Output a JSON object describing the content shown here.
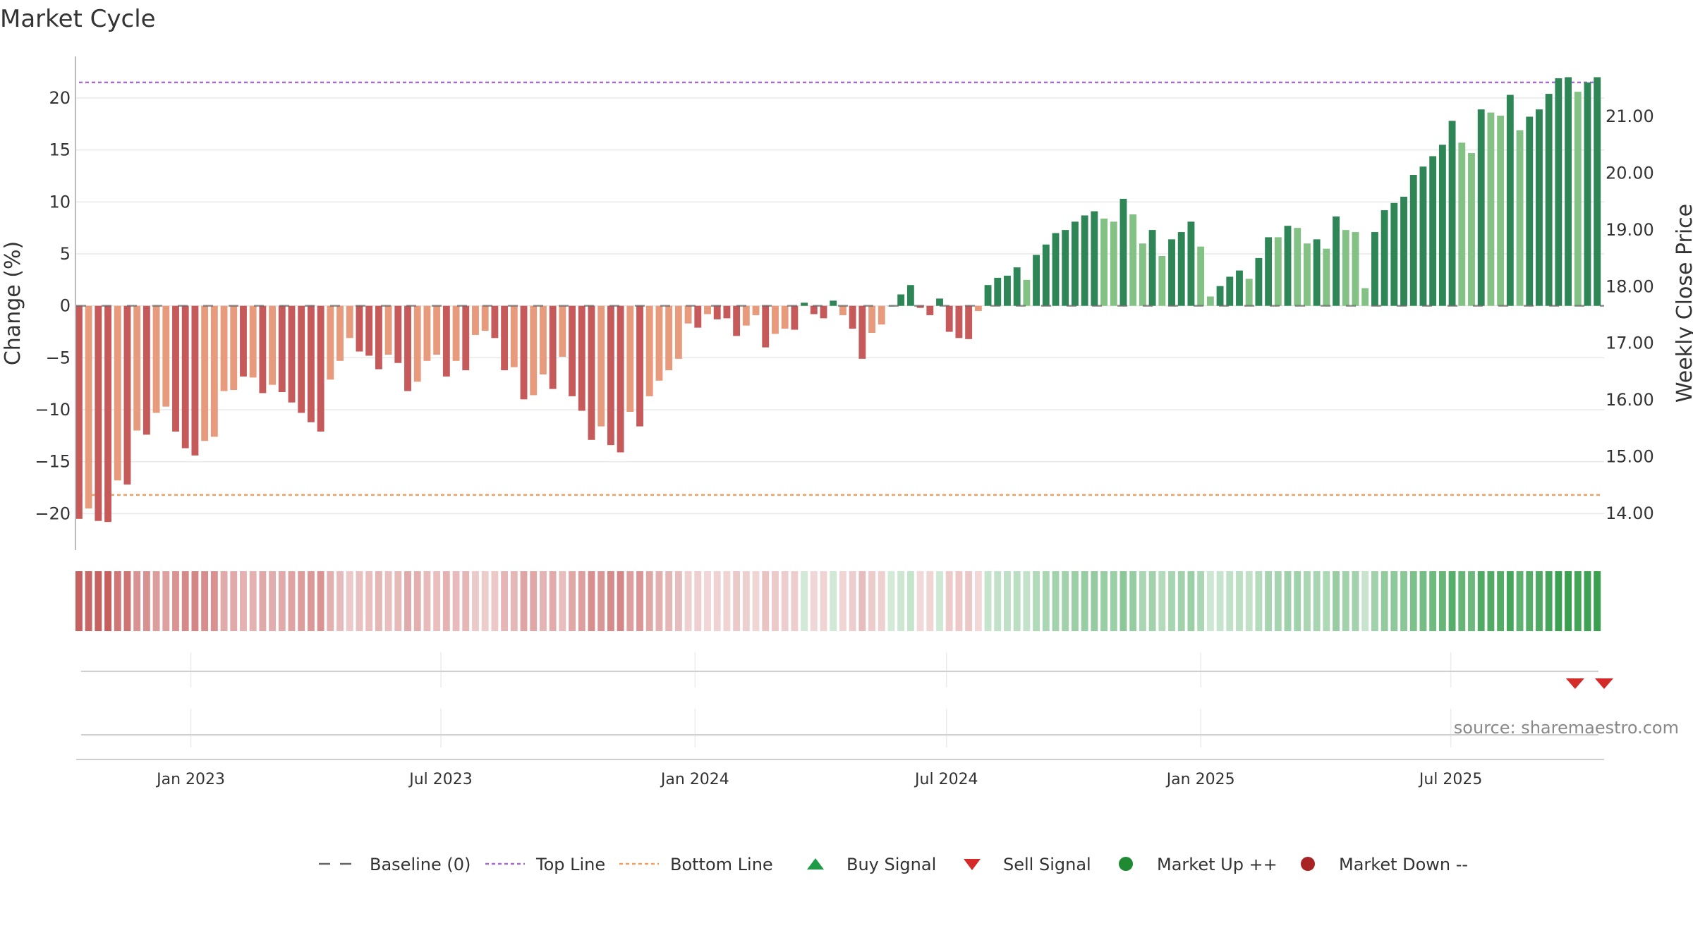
{
  "chart_data": {
    "type": "bar",
    "title": "Market Cycle",
    "ylabel": "Change (%)",
    "ylabel_right": "Weekly Close Price",
    "ylim": [
      -23.5,
      24
    ],
    "yticks": [
      20,
      15,
      10,
      5,
      0,
      -5,
      -10,
      -15,
      -20
    ],
    "ytick_labels": [
      "20",
      "15",
      "10",
      "5",
      "0",
      "−5",
      "−10",
      "−15",
      "−20"
    ],
    "ylim_right": [
      13.35,
      22.06
    ],
    "yticks_right": [
      21,
      20,
      19,
      18,
      17,
      16,
      15,
      14
    ],
    "ytick_labels_right": [
      "21.00",
      "20.00",
      "19.00",
      "18.00",
      "17.00",
      "16.00",
      "15.00",
      "14.00"
    ],
    "x_start": "2022-10-10",
    "x_end": "2025-10-20",
    "xticks": [
      "2023-01-01",
      "2023-07-01",
      "2024-01-01",
      "2024-07-01",
      "2025-01-01",
      "2025-07-01"
    ],
    "xtick_labels": [
      "Jan 2023",
      "Jul 2023",
      "Jan 2024",
      "Jul 2024",
      "Jan 2025",
      "Jul 2025"
    ],
    "first_week": "2022-10-12",
    "week_days": 7,
    "values": [
      -20.5,
      -19.5,
      -20.7,
      -20.8,
      -16.8,
      -17.2,
      -12.0,
      -12.4,
      -10.3,
      -9.7,
      -12.1,
      -13.7,
      -14.4,
      -13.0,
      -12.6,
      -8.2,
      -8.1,
      -6.8,
      -6.9,
      -8.4,
      -7.6,
      -8.3,
      -9.3,
      -10.3,
      -11.2,
      -12.1,
      -7.1,
      -5.3,
      -3.1,
      -4.4,
      -4.8,
      -6.1,
      -4.7,
      -5.5,
      -8.2,
      -7.3,
      -5.3,
      -4.7,
      -6.8,
      -5.3,
      -6.2,
      -2.8,
      -2.4,
      -3.1,
      -6.2,
      -5.9,
      -9.0,
      -8.6,
      -6.6,
      -8.0,
      -4.9,
      -8.7,
      -10.1,
      -12.9,
      -11.6,
      -13.4,
      -14.1,
      -10.2,
      -11.6,
      -8.7,
      -7.2,
      -6.2,
      -5.1,
      -1.7,
      -2.1,
      -0.8,
      -1.3,
      -1.2,
      -2.9,
      -1.9,
      -0.9,
      -4.0,
      -2.7,
      -2.2,
      -2.3,
      0.3,
      -0.8,
      -1.2,
      0.5,
      -0.9,
      -2.2,
      -5.1,
      -2.6,
      -1.8,
      0.0,
      1.1,
      2.0,
      -0.2,
      -0.9,
      0.7,
      -2.5,
      -3.1,
      -3.2,
      -0.5,
      2.0,
      2.7,
      2.9,
      3.7,
      2.5,
      4.9,
      5.9,
      7.0,
      7.3,
      8.1,
      8.7,
      9.1,
      8.4,
      8.1,
      10.3,
      8.8,
      6.0,
      7.3,
      4.8,
      6.4,
      7.1,
      8.1,
      5.7,
      0.9,
      1.9,
      2.8,
      3.4,
      2.6,
      4.6,
      6.6,
      6.6,
      7.7,
      7.5,
      6.0,
      6.4,
      5.5,
      8.6,
      7.3,
      7.1,
      1.7,
      7.1,
      9.2,
      9.9,
      10.5,
      12.6,
      13.4,
      14.4,
      15.5,
      17.8,
      15.7,
      14.7,
      18.9,
      18.6,
      18.3,
      20.3,
      16.9,
      18.2,
      18.9,
      20.4,
      21.9,
      22.0,
      20.6,
      21.5,
      22.0
    ],
    "bar_style": [
      "d",
      "l",
      "d",
      "d",
      "l",
      "d",
      "l",
      "d",
      "l",
      "l",
      "d",
      "d",
      "d",
      "l",
      "l",
      "l",
      "l",
      "d",
      "l",
      "d",
      "l",
      "d",
      "d",
      "d",
      "d",
      "d",
      "l",
      "l",
      "l",
      "d",
      "d",
      "d",
      "l",
      "d",
      "d",
      "l",
      "l",
      "l",
      "d",
      "l",
      "d",
      "l",
      "l",
      "d",
      "d",
      "l",
      "d",
      "l",
      "l",
      "d",
      "l",
      "d",
      "d",
      "d",
      "l",
      "d",
      "d",
      "l",
      "d",
      "l",
      "l",
      "l",
      "l",
      "l",
      "d",
      "l",
      "d",
      "d",
      "d",
      "l",
      "l",
      "d",
      "l",
      "l",
      "d",
      "d",
      "d",
      "d",
      "d",
      "l",
      "d",
      "d",
      "l",
      "l",
      "d",
      "d",
      "d",
      "d",
      "d",
      "d",
      "d",
      "d",
      "d",
      "l",
      "d",
      "d",
      "d",
      "d",
      "l",
      "d",
      "d",
      "d",
      "d",
      "d",
      "d",
      "d",
      "l",
      "l",
      "d",
      "l",
      "l",
      "d",
      "l",
      "d",
      "d",
      "d",
      "l",
      "l",
      "d",
      "d",
      "d",
      "l",
      "d",
      "d",
      "l",
      "d",
      "l",
      "l",
      "d",
      "l",
      "d",
      "l",
      "l",
      "l",
      "d",
      "d",
      "d",
      "d",
      "d",
      "d",
      "d",
      "d",
      "d",
      "l",
      "l",
      "d",
      "l",
      "l",
      "d",
      "l",
      "d",
      "d",
      "d",
      "d",
      "d",
      "l",
      "d",
      "d"
    ],
    "colors": {
      "neg_dark": "#c65a5a",
      "neg_light": "#e89a7c",
      "pos_dark": "#2e8556",
      "pos_light": "#84c184",
      "top_line": "#a66ec8",
      "bottom_line": "#f0a060",
      "baseline": "#666666",
      "buy_signal": "#1e9b46",
      "sell_signal": "#d42a2a",
      "market_up": "#1f8a32",
      "market_down": "#a82424"
    },
    "top_line": 21.5,
    "bottom_line": -18.2,
    "sell_signals": [
      "2025-09-29",
      "2025-10-20"
    ],
    "source": "source: sharemaestro.com",
    "legend": {
      "placement": "bottom",
      "items": [
        {
          "key": "baseline",
          "label": "Baseline (0)"
        },
        {
          "key": "top_line",
          "label": "Top Line"
        },
        {
          "key": "bottom_line",
          "label": "Bottom Line"
        },
        {
          "key": "buy_signal",
          "label": "Buy Signal"
        },
        {
          "key": "sell_signal",
          "label": "Sell Signal"
        },
        {
          "key": "market_up",
          "label": "Market Up ++"
        },
        {
          "key": "market_down",
          "label": "Market Down --"
        }
      ]
    }
  }
}
